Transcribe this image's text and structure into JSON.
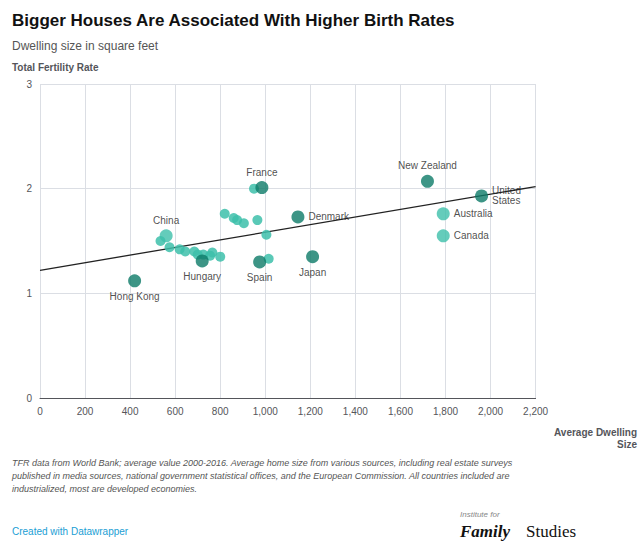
{
  "chart_data": {
    "type": "scatter",
    "title": "Bigger Houses Are Associated With Higher Birth Rates",
    "subtitle": "Dwelling size in square feet",
    "xlabel": "Average Dwelling\nSize",
    "ylabel": "Total Fertility Rate",
    "xlim": [
      0,
      2200
    ],
    "ylim": [
      0,
      3
    ],
    "xticks": [
      0,
      200,
      400,
      600,
      800,
      {
        "value": 1000,
        "label": "1,000"
      },
      {
        "value": 1200,
        "label": "1,200"
      },
      {
        "value": 1400,
        "label": "1,400"
      },
      {
        "value": 1600,
        "label": "1,600"
      },
      {
        "value": 1800,
        "label": "1,800"
      },
      {
        "value": 2000,
        "label": "2,000"
      },
      {
        "value": 2200,
        "label": "2,200"
      }
    ],
    "yticks": [
      0,
      1,
      2,
      3
    ],
    "grid": true,
    "points": [
      {
        "x": 535,
        "y": 1.5,
        "color": "#3dbfaa"
      },
      {
        "x": 575,
        "y": 1.44,
        "color": "#3dbfaa"
      },
      {
        "x": 620,
        "y": 1.42,
        "color": "#3dbfaa"
      },
      {
        "x": 645,
        "y": 1.4,
        "color": "#3dbfaa"
      },
      {
        "x": 685,
        "y": 1.4,
        "color": "#3dbfaa"
      },
      {
        "x": 700,
        "y": 1.37,
        "color": "#3dbfaa"
      },
      {
        "x": 725,
        "y": 1.37,
        "color": "#3dbfaa"
      },
      {
        "x": 755,
        "y": 1.36,
        "color": "#3dbfaa"
      },
      {
        "x": 765,
        "y": 1.39,
        "color": "#3dbfaa"
      },
      {
        "x": 800,
        "y": 1.35,
        "color": "#3dbfaa"
      },
      {
        "x": 820,
        "y": 1.76,
        "color": "#3dbfaa"
      },
      {
        "x": 860,
        "y": 1.72,
        "color": "#3dbfaa"
      },
      {
        "x": 875,
        "y": 1.7,
        "color": "#3dbfaa"
      },
      {
        "x": 905,
        "y": 1.67,
        "color": "#3dbfaa"
      },
      {
        "x": 950,
        "y": 2.0,
        "color": "#3dbfaa"
      },
      {
        "x": 965,
        "y": 1.7,
        "color": "#3dbfaa"
      },
      {
        "x": 1005,
        "y": 1.56,
        "color": "#3dbfaa"
      },
      {
        "x": 1015,
        "y": 1.33,
        "color": "#3dbfaa"
      },
      {
        "x": 420,
        "y": 1.12,
        "color": "#0d7a68",
        "label": "Hong Kong"
      },
      {
        "x": 560,
        "y": 1.55,
        "color": "#3dbfaa",
        "label": "China"
      },
      {
        "x": 720,
        "y": 1.31,
        "color": "#0d7a68",
        "label": "Hungary"
      },
      {
        "x": 975,
        "y": 1.3,
        "color": "#0d7a68",
        "label": "Spain"
      },
      {
        "x": 1210,
        "y": 1.35,
        "color": "#0d7a68",
        "label": "Japan"
      },
      {
        "x": 985,
        "y": 2.01,
        "color": "#0d7a68",
        "label": "France"
      },
      {
        "x": 1145,
        "y": 1.73,
        "color": "#0d7a68",
        "label": "Denmark"
      },
      {
        "x": 1720,
        "y": 2.07,
        "color": "#0d7a68",
        "label": "New Zealand"
      },
      {
        "x": 1790,
        "y": 1.76,
        "color": "#3dbfaa",
        "label": "Australia"
      },
      {
        "x": 1790,
        "y": 1.55,
        "color": "#3dbfaa",
        "label": "Canada"
      },
      {
        "x": 1960,
        "y": 1.93,
        "color": "#0d7a68",
        "label": "United\nStates"
      }
    ],
    "regression": {
      "x": [
        0,
        2200
      ],
      "y": [
        1.22,
        2.02
      ],
      "color": "#222222"
    },
    "footnote": "TFR data from World Bank; average value 2000-2016. Average home size from various sources, including real estate surveys\npublished in media sources, national government statistical offices, and the European Commission. All countries included are\nindustrialized, most are developed economies.",
    "credit": "Created with Datawrapper",
    "annotations": [
      "Institute for",
      "Family",
      "Studies"
    ]
  }
}
